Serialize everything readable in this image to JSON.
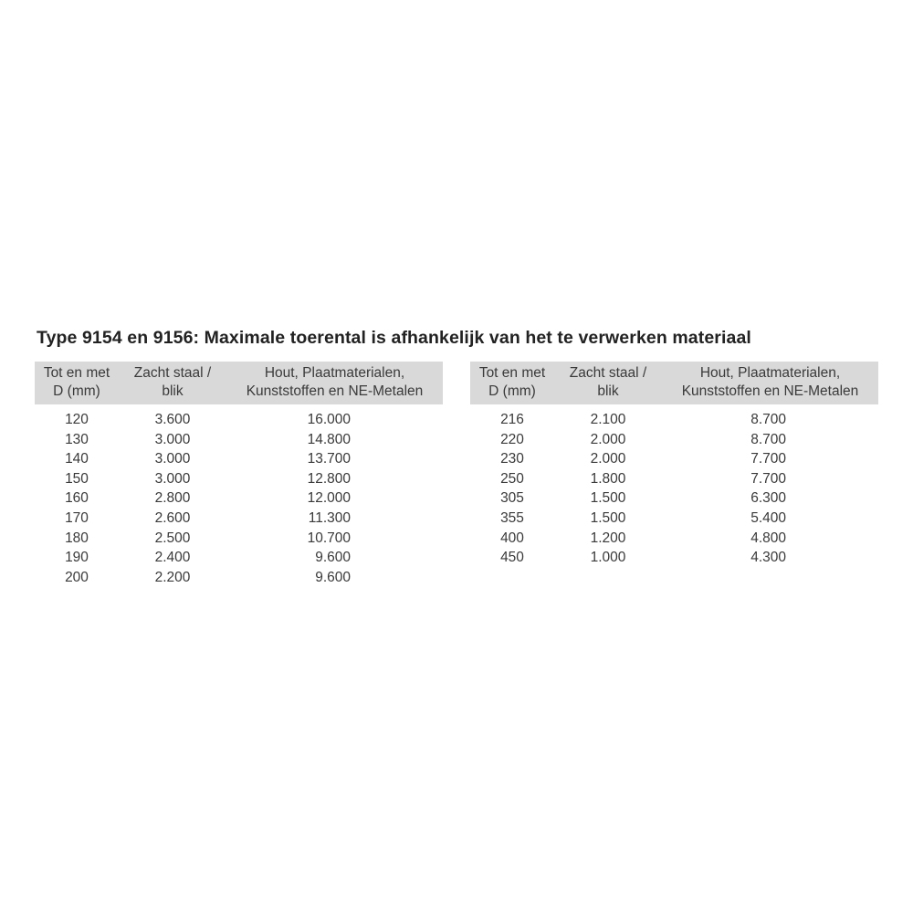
{
  "title": "Type 9154 en 9156: Maximale toerental is afhankelijk van het te verwerken materiaal",
  "columns": {
    "diameter": [
      "Tot en met",
      "D (mm)"
    ],
    "steel": [
      "Zacht staal /",
      "blik"
    ],
    "other": [
      "Hout, Plaatmaterialen,",
      "Kunststoffen en NE-Metalen"
    ]
  },
  "left_table": [
    [
      "120",
      "3.600",
      "16.000"
    ],
    [
      "130",
      "3.000",
      "14.800"
    ],
    [
      "140",
      "3.000",
      "13.700"
    ],
    [
      "150",
      "3.000",
      "12.800"
    ],
    [
      "160",
      "2.800",
      "12.000"
    ],
    [
      "170",
      "2.600",
      "11.300"
    ],
    [
      "180",
      "2.500",
      "10.700"
    ],
    [
      "190",
      "2.400",
      "9.600"
    ],
    [
      "200",
      "2.200",
      "9.600"
    ]
  ],
  "right_table": [
    [
      "216",
      "2.100",
      "8.700"
    ],
    [
      "220",
      "2.000",
      "8.700"
    ],
    [
      "230",
      "2.000",
      "7.700"
    ],
    [
      "250",
      "1.800",
      "7.700"
    ],
    [
      "305",
      "1.500",
      "6.300"
    ],
    [
      "355",
      "1.500",
      "5.400"
    ],
    [
      "400",
      "1.200",
      "4.800"
    ],
    [
      "450",
      "1.000",
      "4.300"
    ]
  ],
  "colors": {
    "header_bg": "#d9d9d9",
    "text": "#3a3a3a"
  }
}
